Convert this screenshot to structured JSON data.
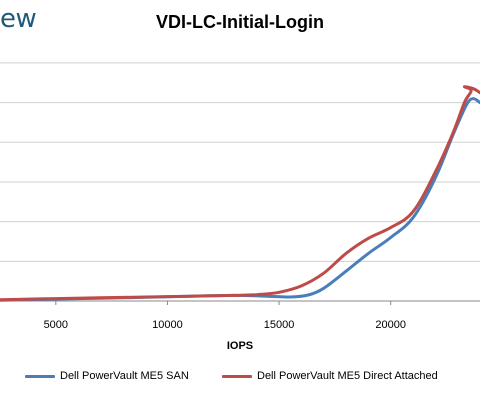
{
  "brand": {
    "text": "ew"
  },
  "chart_data": {
    "type": "line",
    "title": "VDI-LC-Initial-Login",
    "xlabel": "IOPS",
    "ylabel": "",
    "xlim": [
      2500,
      24000
    ],
    "ylim": [
      0,
      6.2
    ],
    "x_ticks": [
      5000,
      10000,
      15000,
      20000
    ],
    "y_grid": [
      1,
      2,
      3,
      4,
      5,
      6
    ],
    "grid": true,
    "legend_position": "bottom",
    "series": [
      {
        "name": "Dell PowerVault ME5 SAN",
        "color": "#4a7ebb",
        "points": [
          [
            2500,
            0.02
          ],
          [
            5000,
            0.05
          ],
          [
            8000,
            0.08
          ],
          [
            11000,
            0.12
          ],
          [
            13000,
            0.14
          ],
          [
            14500,
            0.12
          ],
          [
            15500,
            0.1
          ],
          [
            16300,
            0.15
          ],
          [
            17000,
            0.32
          ],
          [
            18000,
            0.75
          ],
          [
            19000,
            1.2
          ],
          [
            20000,
            1.6
          ],
          [
            21000,
            2.1
          ],
          [
            22000,
            3.1
          ],
          [
            22800,
            4.2
          ],
          [
            23400,
            4.95
          ],
          [
            23700,
            5.1
          ],
          [
            24000,
            5.0
          ]
        ]
      },
      {
        "name": "Dell PowerVault ME5 Direct Attached",
        "color": "#be4b48",
        "points": [
          [
            2500,
            0.03
          ],
          [
            5000,
            0.06
          ],
          [
            8000,
            0.09
          ],
          [
            11000,
            0.12
          ],
          [
            13000,
            0.14
          ],
          [
            14000,
            0.16
          ],
          [
            15000,
            0.22
          ],
          [
            16000,
            0.38
          ],
          [
            17000,
            0.7
          ],
          [
            18000,
            1.2
          ],
          [
            19000,
            1.58
          ],
          [
            20000,
            1.85
          ],
          [
            21000,
            2.25
          ],
          [
            22000,
            3.25
          ],
          [
            22800,
            4.25
          ],
          [
            23300,
            5.0
          ],
          [
            23600,
            5.3
          ],
          [
            23300,
            5.4
          ],
          [
            23700,
            5.35
          ],
          [
            24000,
            5.25
          ]
        ]
      }
    ]
  }
}
